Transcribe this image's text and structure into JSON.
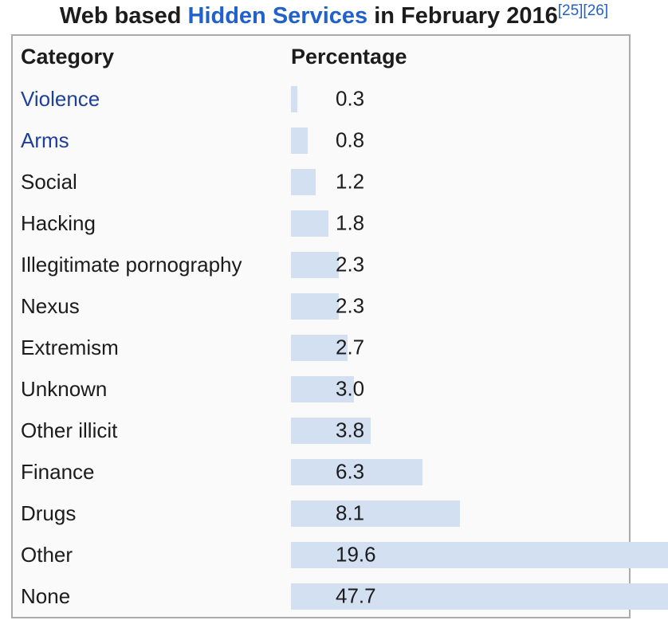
{
  "title": {
    "prefix": "Web based ",
    "link": "Hidden Services",
    "suffix": " in February 2016",
    "refs": [
      "[25]",
      "[26]"
    ]
  },
  "table": {
    "headers": {
      "category": "Category",
      "percentage": "Percentage"
    },
    "rows": [
      {
        "label": "Violence",
        "value": 0.3,
        "display": "0.3",
        "link": true
      },
      {
        "label": "Arms",
        "value": 0.8,
        "display": "0.8",
        "link": true
      },
      {
        "label": "Social",
        "value": 1.2,
        "display": "1.2",
        "link": false
      },
      {
        "label": "Hacking",
        "value": 1.8,
        "display": "1.8",
        "link": false
      },
      {
        "label": "Illegitimate pornography",
        "value": 2.3,
        "display": "2.3",
        "link": false
      },
      {
        "label": "Nexus",
        "value": 2.3,
        "display": "2.3",
        "link": false
      },
      {
        "label": "Extremism",
        "value": 2.7,
        "display": "2.7",
        "link": false
      },
      {
        "label": "Unknown",
        "value": 3.0,
        "display": "3.0",
        "link": false
      },
      {
        "label": "Other illicit",
        "value": 3.8,
        "display": "3.8",
        "link": false
      },
      {
        "label": "Finance",
        "value": 6.3,
        "display": "6.3",
        "link": false
      },
      {
        "label": "Drugs",
        "value": 8.1,
        "display": "8.1",
        "link": false
      },
      {
        "label": "Other",
        "value": 19.6,
        "display": "19.6",
        "link": false
      },
      {
        "label": "None",
        "value": 47.7,
        "display": "47.7",
        "link": false
      }
    ]
  },
  "chart_data": {
    "type": "bar",
    "orientation": "horizontal",
    "title": "Web based Hidden Services in February 2016",
    "categories": [
      "Violence",
      "Arms",
      "Social",
      "Hacking",
      "Illegitimate pornography",
      "Nexus",
      "Extremism",
      "Unknown",
      "Other illicit",
      "Finance",
      "Drugs",
      "Other",
      "None"
    ],
    "values": [
      0.3,
      0.8,
      1.2,
      1.8,
      2.3,
      2.3,
      2.7,
      3.0,
      3.8,
      6.3,
      8.1,
      19.6,
      47.7
    ],
    "xlabel": "Category",
    "ylabel": "Percentage",
    "unit": "percent",
    "grid": false,
    "legend": false,
    "notes": "Bars for Other (19.6) and None (47.7) overflow past the table's right border and are clipped by the image edge"
  },
  "colors": {
    "bar": "#d3e0f2",
    "title_link": "#2161cb",
    "body_link": "#1e409b",
    "border": "#a9abad",
    "table_bg": "#fafafa",
    "text": "#1c1c1c"
  }
}
